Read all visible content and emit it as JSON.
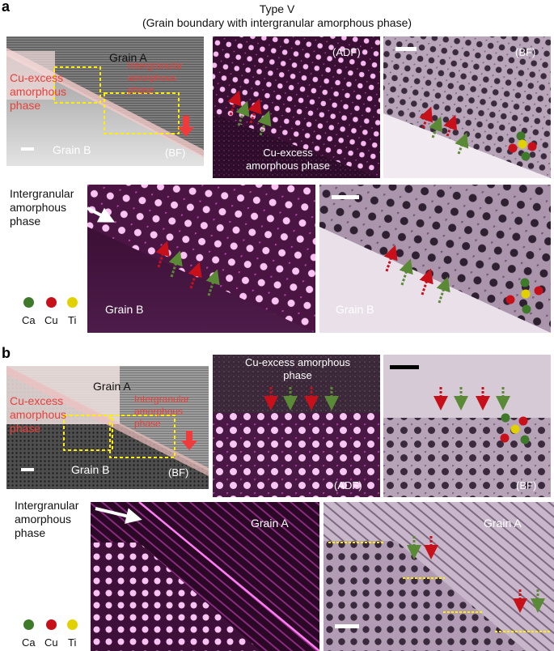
{
  "figure": {
    "title": "Type V",
    "subtitle": "(Grain boundary with intergranular amorphous phase)",
    "colors": {
      "ca": "#3e7a2a",
      "cu": "#c8101b",
      "ti": "#e2d100",
      "label_red": "#e8403a",
      "dashed_box": "#ffee00"
    },
    "legend": [
      {
        "sym": "Ca",
        "color": "#3e7a2a"
      },
      {
        "sym": "Cu",
        "color": "#c8101b"
      },
      {
        "sym": "Ti",
        "color": "#e2d100"
      }
    ]
  },
  "panel_a": {
    "letter": "a",
    "overview": {
      "grain_a": "Grain A",
      "grain_b": "Grain B",
      "mode": "(BF)",
      "cu_excess": "Cu-excess amorphous phase",
      "intergranular": "Intergranular amorphous phase"
    },
    "adf_top": {
      "mode": "(ADF)",
      "amorphous": "Cu-excess amorphous phase"
    },
    "bf_top": {
      "mode": "(BF)"
    },
    "side_label": "Intergranular amorphous phase",
    "adf_bottom": {
      "grain": "Grain B"
    },
    "bf_bottom": {
      "grain": "Grain B"
    }
  },
  "panel_b": {
    "letter": "b",
    "overview": {
      "grain_a": "Grain A",
      "grain_b": "Grain B",
      "mode": "(BF)",
      "cu_excess": "Cu-excess amorphous phase",
      "intergranular": "Intergranular amorphous phase"
    },
    "adf_top": {
      "mode": "(ADF)",
      "amorphous": "Cu-excess amorphous phase"
    },
    "bf_top": {
      "mode": "(BF)"
    },
    "side_label": "Intergranular amorphous phase",
    "adf_bottom": {
      "grain": "Grain A"
    },
    "bf_bottom": {
      "grain": "Grain A"
    }
  }
}
